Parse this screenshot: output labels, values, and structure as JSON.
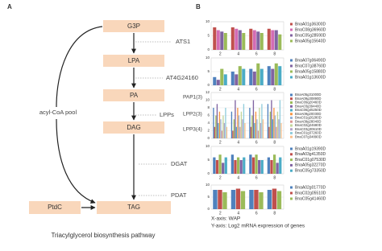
{
  "panel_labels": [
    "A",
    "B"
  ],
  "diagram": {
    "nodes": [
      "G3P",
      "LPA",
      "PA",
      "DAG",
      "TAG",
      "PtdC"
    ],
    "enzymes": [
      "ATS1",
      "AT4G24160",
      "LPPs",
      "PAP1(3)",
      "LPP2(3)",
      "LPP3(4)",
      "DGAT",
      "PDAT"
    ],
    "pool": "acyl-CoA pool",
    "caption": "Triacylglycerol biosynthesis pathway"
  },
  "chart_data": [
    {
      "type": "bar",
      "categories": [
        "2",
        "4",
        "6",
        "8"
      ],
      "ylim": [
        0,
        10
      ],
      "yticks": [
        0,
        5,
        10
      ],
      "series": [
        {
          "name": "BnaA01g36300D",
          "color": "#c0504d",
          "values": [
            8,
            8,
            7.5,
            7.5
          ]
        },
        {
          "name": "BnaC08g36960D",
          "color": "#d36cb4",
          "values": [
            7,
            7.5,
            7,
            7
          ]
        },
        {
          "name": "BnaC05g28590D",
          "color": "#8064a2",
          "values": [
            6.5,
            7,
            6.5,
            7
          ]
        },
        {
          "name": "BnaA05g15640D",
          "color": "#9bbb59",
          "values": [
            6,
            6,
            6,
            5.5
          ]
        }
      ]
    },
    {
      "type": "bar",
      "categories": [
        "2",
        "4",
        "6",
        "8"
      ],
      "ylim": [
        0,
        10
      ],
      "yticks": [
        0,
        5,
        10
      ],
      "series": [
        {
          "name": "BnaA07g06490D",
          "color": "#4f81bd",
          "values": [
            3,
            5,
            6,
            7
          ]
        },
        {
          "name": "BnaC07g38760D",
          "color": "#8064a2",
          "values": [
            2,
            4,
            5,
            6
          ]
        },
        {
          "name": "BnaA05g15880D",
          "color": "#9bbb59",
          "values": [
            6,
            7,
            8,
            8
          ]
        },
        {
          "name": "BnaA01g13600D",
          "color": "#4bacc6",
          "values": [
            4,
            6,
            6,
            7
          ]
        }
      ]
    },
    {
      "type": "bar",
      "categories": [
        "2",
        "4",
        "6",
        "8"
      ],
      "ylim": [
        0,
        12
      ],
      "yticks": [
        0,
        2,
        4,
        6,
        8,
        10,
        12
      ],
      "series": [
        {
          "name": "BnaA05g31000D",
          "color": "#4f81bd",
          "values": [
            8,
            7,
            8,
            9
          ]
        },
        {
          "name": "BnaA09g30890D",
          "color": "#c0504d",
          "values": [
            3,
            2,
            3,
            3
          ]
        },
        {
          "name": "BnaC09g20460D",
          "color": "#9bbb59",
          "values": [
            6,
            5,
            6,
            7
          ]
        },
        {
          "name": "BnaA03g39440D",
          "color": "#8064a2",
          "values": [
            9,
            10,
            10,
            10
          ]
        },
        {
          "name": "BnaC06g45250D",
          "color": "#4bacc6",
          "values": [
            4,
            3,
            4,
            5
          ]
        },
        {
          "name": "BnaA09g20030D",
          "color": "#f79646",
          "values": [
            7,
            8,
            7,
            8
          ]
        },
        {
          "name": "BnaC01g26280D",
          "color": "#95b3d7",
          "values": [
            5,
            6,
            5,
            6
          ]
        },
        {
          "name": "BnaA09g28040D",
          "color": "#d99694",
          "values": [
            2,
            3,
            2,
            3
          ]
        },
        {
          "name": "BnaC02g24680D",
          "color": "#c3d69b",
          "values": [
            6,
            7,
            8,
            7
          ]
        },
        {
          "name": "BnaC03g30610D",
          "color": "#b2a2c7",
          "values": [
            4,
            5,
            4,
            5
          ]
        },
        {
          "name": "BnaC01g37260D",
          "color": "#92cddc",
          "values": [
            8,
            9,
            9,
            10
          ]
        },
        {
          "name": "BnaC07g34890D",
          "color": "#fac08f",
          "values": [
            3,
            4,
            5,
            4
          ]
        }
      ]
    },
    {
      "type": "bar",
      "categories": [
        "2",
        "4",
        "6",
        "8"
      ],
      "ylim": [
        0,
        10
      ],
      "yticks": [
        0,
        5,
        10
      ],
      "series": [
        {
          "name": "BnaA01g19390D",
          "color": "#4f81bd",
          "values": [
            6,
            7,
            7,
            6
          ]
        },
        {
          "name": "BnaA03g41350D",
          "color": "#c0504d",
          "values": [
            5,
            5,
            6,
            5
          ]
        },
        {
          "name": "BnaC01g07530D",
          "color": "#9bbb59",
          "values": [
            7,
            6,
            7,
            7
          ]
        },
        {
          "name": "BnaA05g32270D",
          "color": "#8064a2",
          "values": [
            4,
            5,
            5,
            4
          ]
        },
        {
          "name": "BnaC05g73350D",
          "color": "#4bacc6",
          "values": [
            6,
            6,
            5,
            6
          ]
        }
      ]
    },
    {
      "type": "bar",
      "categories": [
        "2",
        "4",
        "6",
        "8"
      ],
      "ylim": [
        0,
        10
      ],
      "yticks": [
        0,
        5,
        10
      ],
      "series": [
        {
          "name": "BnaA02g01770D",
          "color": "#4f81bd",
          "values": [
            8,
            8,
            8,
            8
          ]
        },
        {
          "name": "BnaC02g05510D",
          "color": "#c0504d",
          "values": [
            8,
            8.5,
            8,
            8.5
          ]
        },
        {
          "name": "BnaC05g41460D",
          "color": "#9bbb59",
          "values": [
            7,
            7.5,
            7,
            7.5
          ]
        }
      ]
    }
  ],
  "axis_notes": [
    "X-axis:  WAP",
    "Y-axis:  Log2 mRNA expression of genes"
  ]
}
